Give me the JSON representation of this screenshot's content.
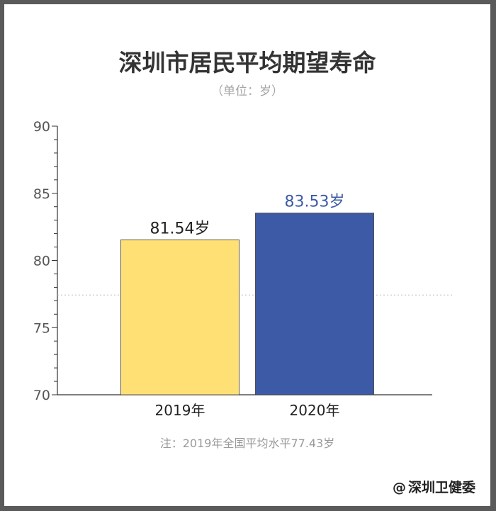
{
  "chart_data": {
    "type": "bar",
    "title": "深圳市居民平均期望寿命",
    "subtitle": "（单位：岁）",
    "categories": [
      "2019年",
      "2020年"
    ],
    "values": [
      81.54,
      83.53
    ],
    "value_labels": [
      "81.54岁",
      "83.53岁"
    ],
    "bar_colors": [
      "#ffe075",
      "#3d5aa6"
    ],
    "value_label_colors": [
      "#222222",
      "#3d5aa6"
    ],
    "ylim": [
      70,
      90
    ],
    "yticks": [
      70,
      75,
      80,
      85,
      90
    ],
    "reference_line": {
      "value": 77.43,
      "style": "dotted",
      "color": "#bbbbbb"
    },
    "annotation": "注：2019年全国平均水平77.43岁",
    "grid": false
  },
  "credit": {
    "symbol": "@",
    "text": "深圳卫健委"
  }
}
